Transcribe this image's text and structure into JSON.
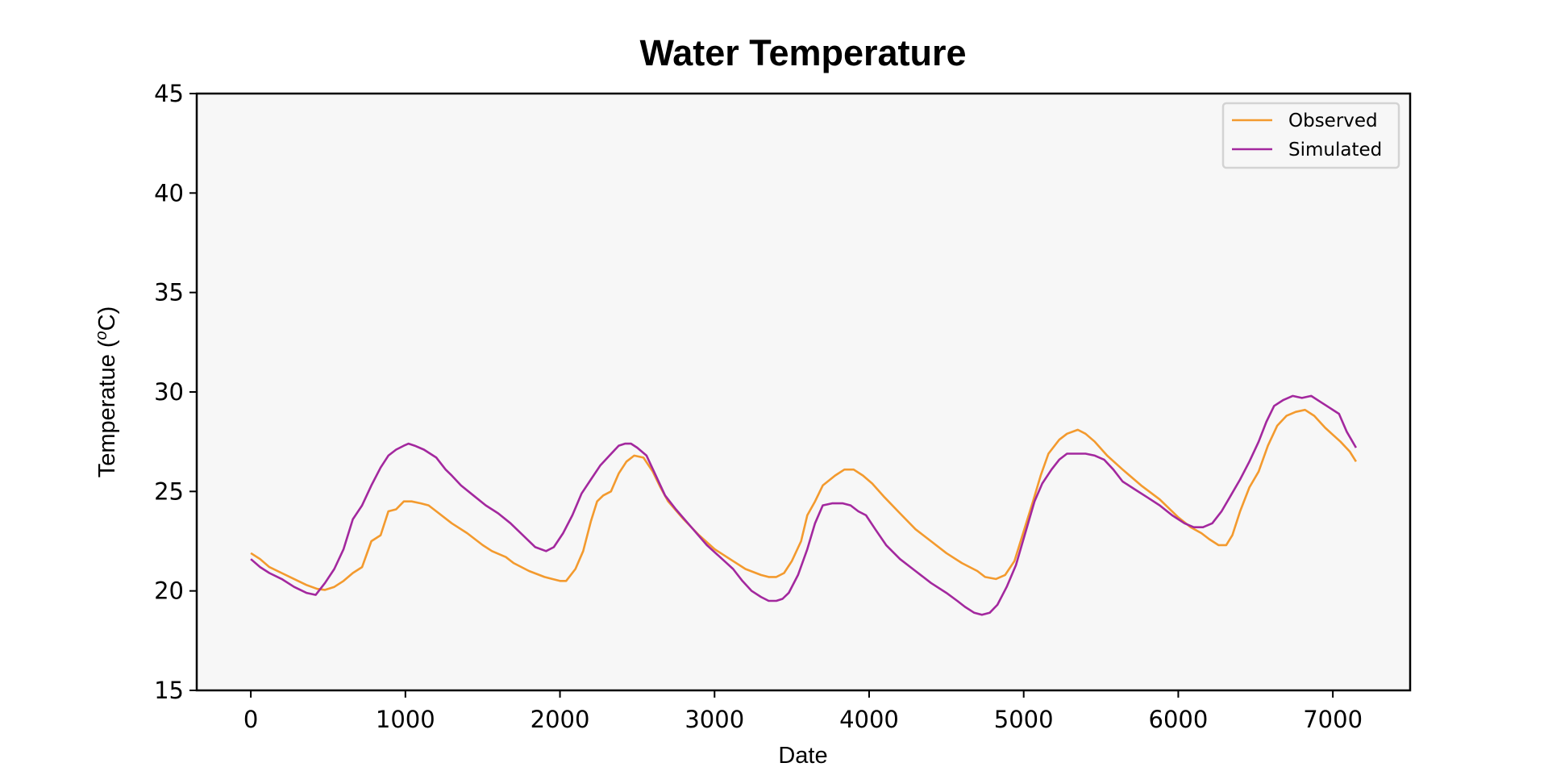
{
  "chart_data": {
    "type": "line",
    "title": "Water Temperature",
    "xlabel": "Date",
    "ylabel_prefix": "Temperatue (",
    "ylabel_sup": "o",
    "ylabel_suffix": "C)",
    "xlim": [
      -350,
      7500
    ],
    "ylim": [
      15,
      45
    ],
    "xticks": [
      0,
      1000,
      2000,
      3000,
      4000,
      5000,
      6000,
      7000
    ],
    "yticks": [
      15,
      20,
      25,
      30,
      35,
      40,
      45
    ],
    "grid": false,
    "legend_position": "top-right",
    "plot_background": "#f7f7f7",
    "series": [
      {
        "name": "Observed",
        "color": "#f39a2e",
        "points": [
          [
            0,
            21.9
          ],
          [
            60,
            21.6
          ],
          [
            120,
            21.2
          ],
          [
            200,
            20.9
          ],
          [
            280,
            20.6
          ],
          [
            360,
            20.3
          ],
          [
            430,
            20.1
          ],
          [
            480,
            20.05
          ],
          [
            540,
            20.2
          ],
          [
            600,
            20.5
          ],
          [
            660,
            20.9
          ],
          [
            720,
            21.2
          ],
          [
            780,
            22.5
          ],
          [
            840,
            22.8
          ],
          [
            890,
            24.0
          ],
          [
            940,
            24.1
          ],
          [
            990,
            24.5
          ],
          [
            1040,
            24.5
          ],
          [
            1100,
            24.4
          ],
          [
            1150,
            24.3
          ],
          [
            1200,
            24.0
          ],
          [
            1300,
            23.4
          ],
          [
            1400,
            22.9
          ],
          [
            1500,
            22.3
          ],
          [
            1560,
            22.0
          ],
          [
            1650,
            21.7
          ],
          [
            1700,
            21.4
          ],
          [
            1800,
            21.0
          ],
          [
            1900,
            20.7
          ],
          [
            1950,
            20.6
          ],
          [
            2000,
            20.5
          ],
          [
            2040,
            20.5
          ],
          [
            2100,
            21.1
          ],
          [
            2150,
            22.0
          ],
          [
            2200,
            23.5
          ],
          [
            2240,
            24.5
          ],
          [
            2280,
            24.8
          ],
          [
            2330,
            25.0
          ],
          [
            2380,
            25.9
          ],
          [
            2430,
            26.5
          ],
          [
            2480,
            26.8
          ],
          [
            2540,
            26.7
          ],
          [
            2600,
            26.0
          ],
          [
            2650,
            25.2
          ],
          [
            2700,
            24.5
          ],
          [
            2800,
            23.6
          ],
          [
            2900,
            22.8
          ],
          [
            3000,
            22.1
          ],
          [
            3100,
            21.6
          ],
          [
            3200,
            21.1
          ],
          [
            3300,
            20.8
          ],
          [
            3350,
            20.7
          ],
          [
            3400,
            20.7
          ],
          [
            3450,
            20.9
          ],
          [
            3500,
            21.5
          ],
          [
            3560,
            22.5
          ],
          [
            3600,
            23.8
          ],
          [
            3650,
            24.5
          ],
          [
            3700,
            25.3
          ],
          [
            3780,
            25.8
          ],
          [
            3840,
            26.1
          ],
          [
            3900,
            26.1
          ],
          [
            3960,
            25.8
          ],
          [
            4020,
            25.4
          ],
          [
            4100,
            24.7
          ],
          [
            4200,
            23.9
          ],
          [
            4300,
            23.1
          ],
          [
            4400,
            22.5
          ],
          [
            4500,
            21.9
          ],
          [
            4600,
            21.4
          ],
          [
            4700,
            21.0
          ],
          [
            4750,
            20.7
          ],
          [
            4820,
            20.6
          ],
          [
            4880,
            20.8
          ],
          [
            4940,
            21.5
          ],
          [
            5000,
            23.0
          ],
          [
            5060,
            24.5
          ],
          [
            5110,
            25.8
          ],
          [
            5160,
            26.9
          ],
          [
            5230,
            27.6
          ],
          [
            5280,
            27.9
          ],
          [
            5350,
            28.1
          ],
          [
            5400,
            27.9
          ],
          [
            5460,
            27.5
          ],
          [
            5540,
            26.8
          ],
          [
            5640,
            26.1
          ],
          [
            5760,
            25.3
          ],
          [
            5880,
            24.6
          ],
          [
            6000,
            23.7
          ],
          [
            6080,
            23.2
          ],
          [
            6150,
            22.9
          ],
          [
            6200,
            22.6
          ],
          [
            6260,
            22.3
          ],
          [
            6310,
            22.3
          ],
          [
            6350,
            22.8
          ],
          [
            6400,
            24.0
          ],
          [
            6460,
            25.2
          ],
          [
            6520,
            26.0
          ],
          [
            6580,
            27.3
          ],
          [
            6640,
            28.3
          ],
          [
            6700,
            28.8
          ],
          [
            6760,
            29.0
          ],
          [
            6820,
            29.1
          ],
          [
            6880,
            28.8
          ],
          [
            6950,
            28.2
          ],
          [
            7050,
            27.5
          ],
          [
            7110,
            27.0
          ],
          [
            7150,
            26.5
          ]
        ]
      },
      {
        "name": "Simulated",
        "color": "#a3289e",
        "points": [
          [
            0,
            21.6
          ],
          [
            60,
            21.2
          ],
          [
            120,
            20.9
          ],
          [
            200,
            20.6
          ],
          [
            280,
            20.2
          ],
          [
            360,
            19.9
          ],
          [
            420,
            19.8
          ],
          [
            480,
            20.4
          ],
          [
            540,
            21.1
          ],
          [
            600,
            22.1
          ],
          [
            660,
            23.6
          ],
          [
            720,
            24.3
          ],
          [
            780,
            25.3
          ],
          [
            840,
            26.2
          ],
          [
            890,
            26.8
          ],
          [
            940,
            27.1
          ],
          [
            990,
            27.3
          ],
          [
            1020,
            27.4
          ],
          [
            1060,
            27.3
          ],
          [
            1120,
            27.1
          ],
          [
            1200,
            26.7
          ],
          [
            1260,
            26.1
          ],
          [
            1300,
            25.8
          ],
          [
            1360,
            25.3
          ],
          [
            1440,
            24.8
          ],
          [
            1520,
            24.3
          ],
          [
            1600,
            23.9
          ],
          [
            1680,
            23.4
          ],
          [
            1760,
            22.8
          ],
          [
            1840,
            22.2
          ],
          [
            1910,
            22.0
          ],
          [
            1960,
            22.2
          ],
          [
            2020,
            22.9
          ],
          [
            2080,
            23.8
          ],
          [
            2140,
            24.9
          ],
          [
            2200,
            25.6
          ],
          [
            2260,
            26.3
          ],
          [
            2320,
            26.8
          ],
          [
            2380,
            27.3
          ],
          [
            2420,
            27.4
          ],
          [
            2460,
            27.4
          ],
          [
            2500,
            27.2
          ],
          [
            2560,
            26.8
          ],
          [
            2620,
            25.8
          ],
          [
            2680,
            24.8
          ],
          [
            2750,
            24.1
          ],
          [
            2850,
            23.2
          ],
          [
            2950,
            22.3
          ],
          [
            3050,
            21.6
          ],
          [
            3120,
            21.1
          ],
          [
            3180,
            20.5
          ],
          [
            3240,
            20.0
          ],
          [
            3300,
            19.7
          ],
          [
            3350,
            19.5
          ],
          [
            3400,
            19.5
          ],
          [
            3440,
            19.6
          ],
          [
            3480,
            19.9
          ],
          [
            3540,
            20.8
          ],
          [
            3600,
            22.1
          ],
          [
            3650,
            23.4
          ],
          [
            3700,
            24.3
          ],
          [
            3760,
            24.4
          ],
          [
            3830,
            24.4
          ],
          [
            3880,
            24.3
          ],
          [
            3930,
            24.0
          ],
          [
            3980,
            23.8
          ],
          [
            4040,
            23.1
          ],
          [
            4110,
            22.3
          ],
          [
            4200,
            21.6
          ],
          [
            4300,
            21.0
          ],
          [
            4400,
            20.4
          ],
          [
            4500,
            19.9
          ],
          [
            4570,
            19.5
          ],
          [
            4620,
            19.2
          ],
          [
            4680,
            18.9
          ],
          [
            4730,
            18.8
          ],
          [
            4780,
            18.9
          ],
          [
            4830,
            19.3
          ],
          [
            4890,
            20.2
          ],
          [
            4950,
            21.3
          ],
          [
            5010,
            22.9
          ],
          [
            5070,
            24.5
          ],
          [
            5120,
            25.4
          ],
          [
            5180,
            26.1
          ],
          [
            5230,
            26.6
          ],
          [
            5280,
            26.9
          ],
          [
            5340,
            26.9
          ],
          [
            5400,
            26.9
          ],
          [
            5460,
            26.8
          ],
          [
            5520,
            26.6
          ],
          [
            5580,
            26.1
          ],
          [
            5640,
            25.5
          ],
          [
            5720,
            25.1
          ],
          [
            5800,
            24.7
          ],
          [
            5880,
            24.3
          ],
          [
            5960,
            23.8
          ],
          [
            6040,
            23.4
          ],
          [
            6100,
            23.2
          ],
          [
            6160,
            23.2
          ],
          [
            6220,
            23.4
          ],
          [
            6280,
            24.0
          ],
          [
            6340,
            24.8
          ],
          [
            6400,
            25.6
          ],
          [
            6460,
            26.5
          ],
          [
            6520,
            27.5
          ],
          [
            6570,
            28.5
          ],
          [
            6620,
            29.3
          ],
          [
            6680,
            29.6
          ],
          [
            6740,
            29.8
          ],
          [
            6800,
            29.7
          ],
          [
            6860,
            29.8
          ],
          [
            6920,
            29.5
          ],
          [
            6980,
            29.2
          ],
          [
            7040,
            28.9
          ],
          [
            7090,
            28.0
          ],
          [
            7150,
            27.2
          ]
        ]
      }
    ]
  }
}
